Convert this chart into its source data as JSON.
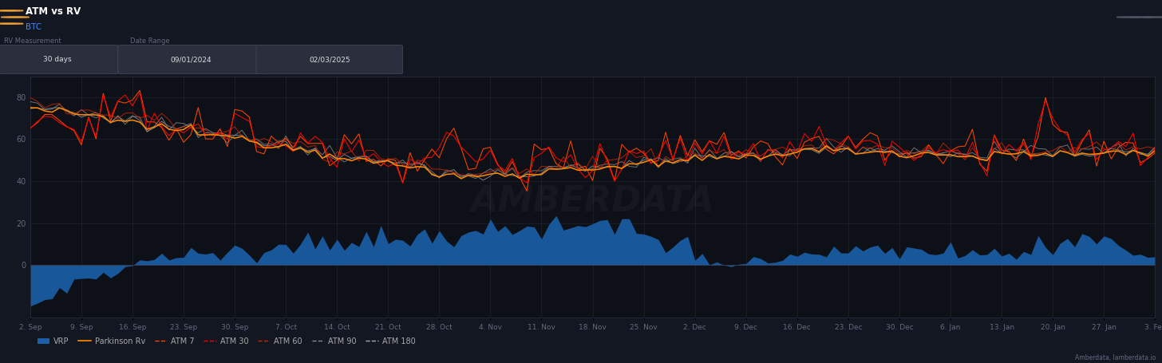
{
  "title": "ATM vs RV",
  "subtitle": "BTC",
  "bg_color": "#131722",
  "header_bg": "#252a3a",
  "plot_bg": "#0d1117",
  "date_start": "09/01/2024",
  "date_end": "02/03/2025",
  "x_labels": [
    "2. Sep",
    "9. Sep",
    "16. Sep",
    "23. Sep",
    "30. Sep",
    "7. Oct",
    "14. Oct",
    "21. Oct",
    "28. Oct",
    "4. Nov",
    "11. Nov",
    "18. Nov",
    "25. Nov",
    "2. Dec",
    "9. Dec",
    "16. Dec",
    "23. Dec",
    "30. Dec",
    "6. Jan",
    "13. Jan",
    "20. Jan",
    "27. Jan",
    "3. Feb"
  ],
  "y_ticks": [
    0,
    20,
    40,
    60,
    80
  ],
  "atm7_color": "#ff4400",
  "atm30_color": "#ff0000",
  "atm60_color": "#cc2200",
  "atm90_color": "#888888",
  "atm180_color": "#aaaaaa",
  "parkinson_color": "#ff8800",
  "vrp_fill_color": "#1a5fa8",
  "grid_color": "#2a2e3d",
  "tick_color": "#666980",
  "legend_label_color": "#aaaaaa",
  "watermark_text": "AMBERDATA",
  "attribution": "Amberdata, lamberdata.io"
}
